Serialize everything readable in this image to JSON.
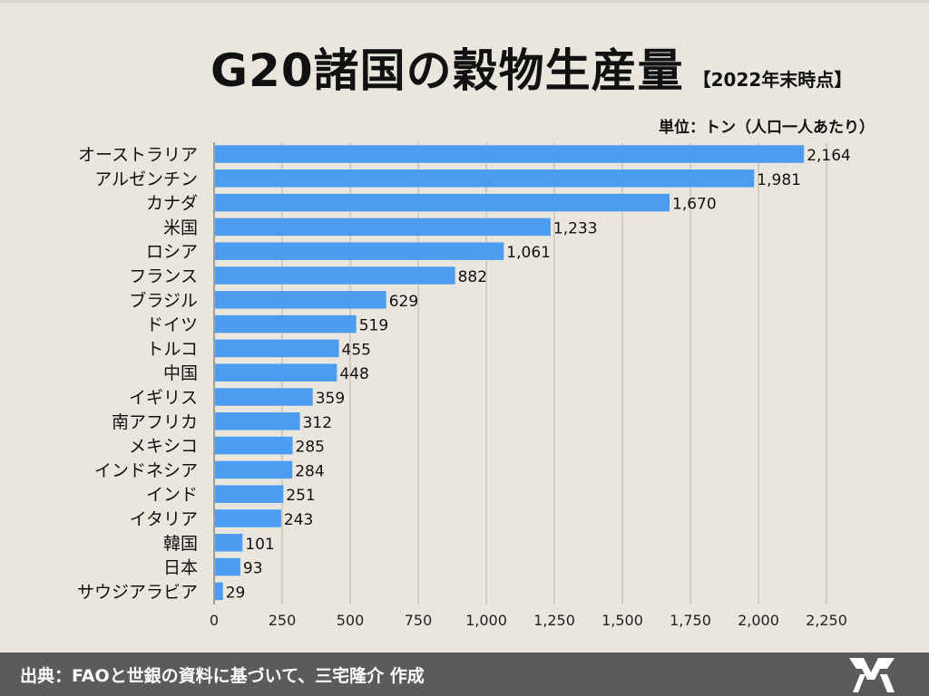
{
  "title": {
    "main": "G20諸国の穀物生産量",
    "sub": "【2022年末時点】"
  },
  "unit_label": "単位：トン（人口一人あたり）",
  "source": "出典：FAOと世銀の資料に基づいて、三宅隆介 作成",
  "colors": {
    "bar": "#4c9df2",
    "grid": "#b9b6ae",
    "background": "#e9e6dd",
    "footer": "#5b5b5b"
  },
  "chart_data": {
    "type": "bar",
    "orientation": "horizontal",
    "categories": [
      "オーストラリア",
      "アルゼンチン",
      "カナダ",
      "米国",
      "ロシア",
      "フランス",
      "ブラジル",
      "ドイツ",
      "トルコ",
      "中国",
      "イギリス",
      "南アフリカ",
      "メキシコ",
      "インドネシア",
      "インド",
      "イタリア",
      "韓国",
      "日本",
      "サウジアラビア"
    ],
    "values": [
      2164,
      1981,
      1670,
      1233,
      1061,
      882,
      629,
      519,
      455,
      448,
      359,
      312,
      285,
      284,
      251,
      243,
      101,
      93,
      29
    ],
    "value_labels": [
      "2,164",
      "1,981",
      "1,670",
      "1,233",
      "1,061",
      "882",
      "629",
      "519",
      "455",
      "448",
      "359",
      "312",
      "285",
      "284",
      "251",
      "243",
      "101",
      "93",
      "29"
    ],
    "ticks": [
      0,
      250,
      500,
      750,
      1000,
      1250,
      1500,
      1750,
      2000,
      2250
    ],
    "tick_labels": [
      "0",
      "250",
      "500",
      "750",
      "1,000",
      "1,250",
      "1,500",
      "1,750",
      "2,000",
      "2,250"
    ],
    "xlim": [
      0,
      2250
    ],
    "grid": true,
    "title": "G20諸国の穀物生産量"
  }
}
